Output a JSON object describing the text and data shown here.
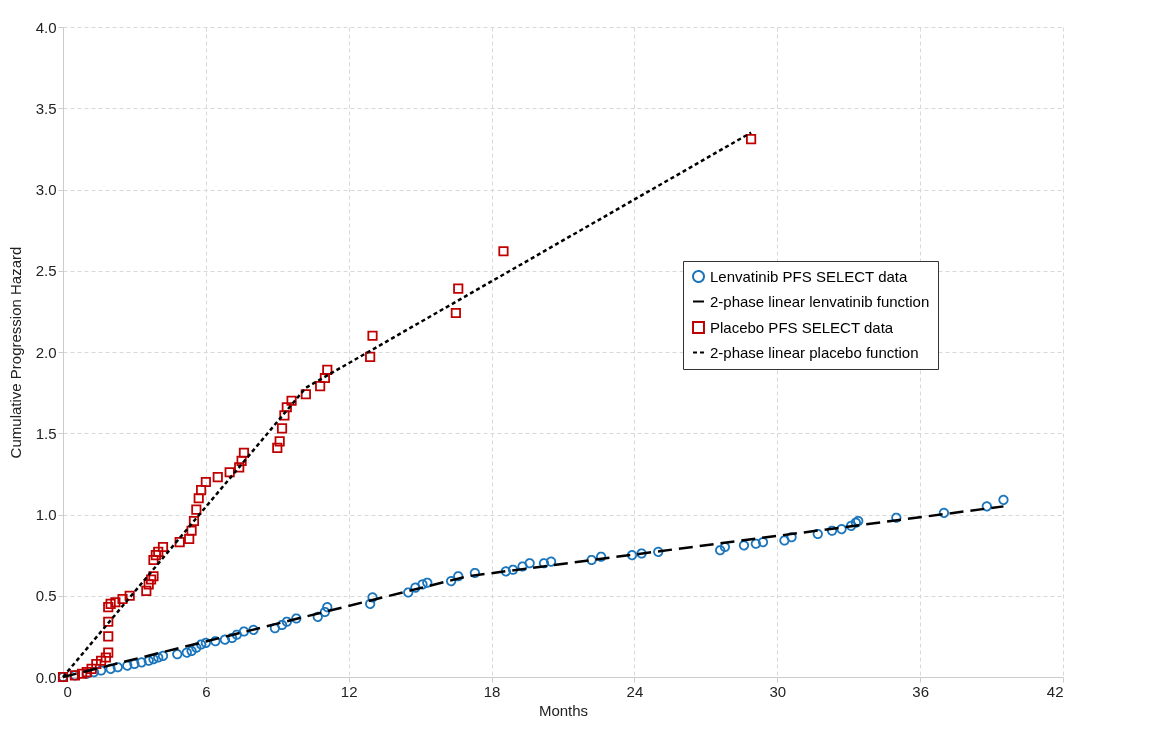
{
  "chart_data": {
    "type": "scatter",
    "xlabel": "Months",
    "ylabel": "Cumulative  Progression Hazard",
    "xlim": [
      0,
      42
    ],
    "ylim": [
      0,
      4
    ],
    "xticks": [
      0,
      6,
      12,
      18,
      24,
      30,
      36,
      42
    ],
    "yticks": [
      {
        "value": 0,
        "label": "0.0"
      },
      0.5,
      {
        "value": 1,
        "label": "1.0"
      },
      1.5,
      {
        "value": 2,
        "label": "2.0"
      },
      2.5,
      {
        "value": 3,
        "label": "3.0"
      },
      3.5,
      {
        "value": 4,
        "label": "4.0"
      }
    ],
    "grid": true,
    "legend": "right",
    "series": [
      {
        "name": "Lenvatinib PFS SELECT data",
        "type": "scatter",
        "marker": "circle",
        "color": "#1a75bc",
        "x": [
          0,
          0.5,
          1,
          1.3,
          1.6,
          2,
          2.3,
          2.7,
          3,
          3.3,
          3.6,
          3.8,
          4,
          4.2,
          4.8,
          5.2,
          5.4,
          5.6,
          5.8,
          6,
          6.4,
          6.8,
          7.1,
          7.3,
          7.6,
          8,
          8.9,
          9.2,
          9.4,
          9.8,
          10.7,
          11,
          11.1,
          12.9,
          13,
          14.5,
          14.8,
          15.1,
          15.3,
          16.3,
          16.6,
          17.3,
          18.6,
          18.9,
          19.3,
          19.6,
          20.2,
          20.5,
          22.2,
          22.6,
          23.9,
          24.3,
          25,
          27.6,
          27.8,
          28.6,
          29.1,
          29.4,
          30.3,
          30.6,
          31.7,
          32.3,
          32.7,
          33.1,
          33.3,
          33.4,
          35,
          37,
          38.8,
          39.5
        ],
        "values": [
          0,
          0.01,
          0.02,
          0.03,
          0.04,
          0.05,
          0.06,
          0.07,
          0.08,
          0.09,
          0.1,
          0.11,
          0.12,
          0.13,
          0.14,
          0.15,
          0.16,
          0.18,
          0.2,
          0.21,
          0.22,
          0.23,
          0.24,
          0.26,
          0.28,
          0.29,
          0.3,
          0.32,
          0.34,
          0.36,
          0.37,
          0.4,
          0.43,
          0.45,
          0.49,
          0.52,
          0.55,
          0.57,
          0.58,
          0.59,
          0.62,
          0.64,
          0.65,
          0.66,
          0.68,
          0.7,
          0.7,
          0.71,
          0.72,
          0.74,
          0.75,
          0.76,
          0.77,
          0.78,
          0.8,
          0.81,
          0.82,
          0.83,
          0.84,
          0.86,
          0.88,
          0.9,
          0.91,
          0.93,
          0.95,
          0.96,
          0.98,
          1.01,
          1.05,
          1.09
        ]
      },
      {
        "name": "2-phase linear lenvatinib function",
        "type": "line",
        "line_style": "dashed",
        "color": "#000000",
        "x": [
          0,
          17,
          39.5
        ],
        "values": [
          0,
          0.62,
          1.05
        ]
      },
      {
        "name": "Placebo PFS SELECT data",
        "type": "scatter",
        "marker": "square",
        "color": "#c00000",
        "x": [
          0,
          0.5,
          0.8,
          1,
          1.2,
          1.4,
          1.6,
          1.8,
          1.9,
          1.9,
          1.9,
          1.9,
          2,
          2.2,
          2.5,
          2.8,
          3.5,
          3.6,
          3.7,
          3.8,
          3.8,
          3.9,
          4,
          4.2,
          4.9,
          5.3,
          5.4,
          5.5,
          5.6,
          5.7,
          5.8,
          6,
          6.5,
          7,
          7.4,
          7.5,
          7.6,
          9,
          9.1,
          9.2,
          9.3,
          9.4,
          9.6,
          10.2,
          10.8,
          11,
          11.1,
          12.9,
          13,
          16.5,
          16.6,
          18.5,
          28.9
        ],
        "values": [
          0,
          0.01,
          0.02,
          0.03,
          0.05,
          0.08,
          0.1,
          0.12,
          0.15,
          0.25,
          0.34,
          0.43,
          0.45,
          0.46,
          0.48,
          0.5,
          0.53,
          0.57,
          0.6,
          0.62,
          0.72,
          0.75,
          0.77,
          0.8,
          0.83,
          0.85,
          0.9,
          0.96,
          1.03,
          1.1,
          1.15,
          1.2,
          1.23,
          1.26,
          1.29,
          1.33,
          1.38,
          1.41,
          1.45,
          1.53,
          1.61,
          1.66,
          1.7,
          1.74,
          1.79,
          1.84,
          1.89,
          1.97,
          2.1,
          2.24,
          2.39,
          2.62,
          3.31
        ]
      },
      {
        "name": "2-phase linear placebo function",
        "type": "line",
        "line_style": "dotted",
        "color": "#000000",
        "x": [
          0,
          10.2,
          28.9
        ],
        "values": [
          0,
          1.78,
          3.35
        ]
      }
    ]
  }
}
